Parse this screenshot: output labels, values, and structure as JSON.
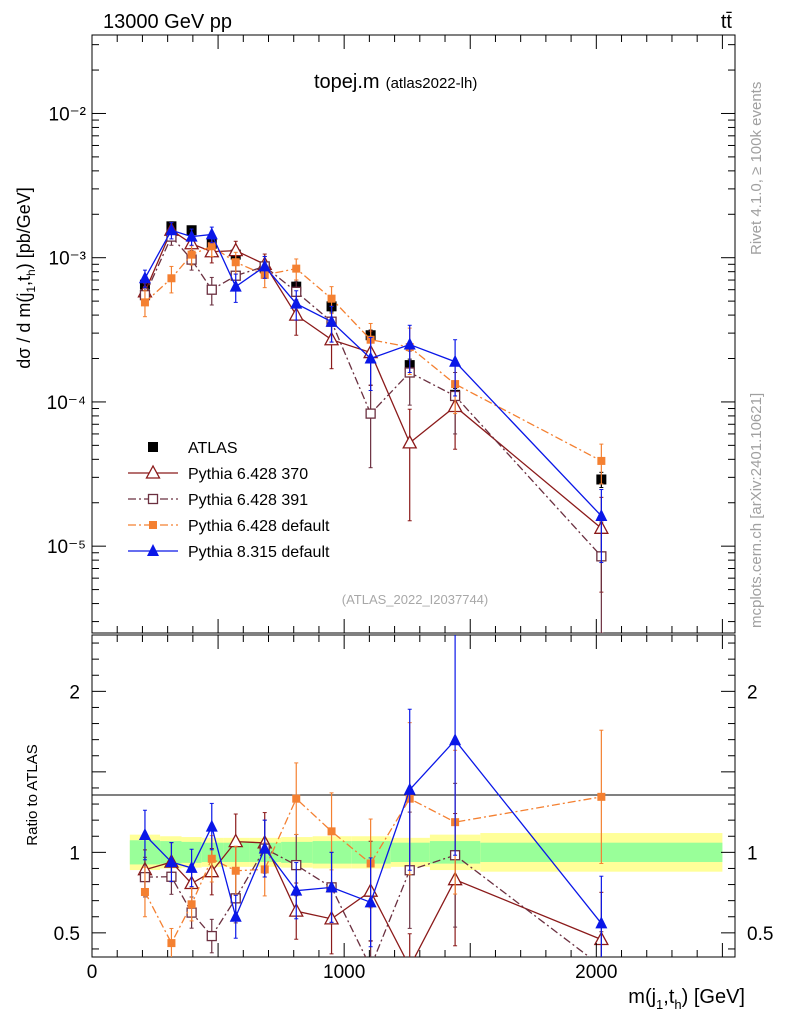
{
  "header": {
    "left": "13000 GeV pp",
    "right": "tt̄"
  },
  "chart_data": {
    "type": "scatter",
    "title": "topej.m",
    "subtitle": "(atlas2022-lh)",
    "watermark": "(ATLAS_2022_I2037744)",
    "side_label_top": "Rivet 4.1.0, ≥ 100k events",
    "side_label_bottom": "mcplots.cern.ch [arXiv:2401.10621]",
    "ylabel": "dσ / d m(j1,th) [pb/GeV]",
    "ratio_ylabel": "Ratio to ATLAS",
    "xlabel": "m(j1,th) [GeV]",
    "xlim": [
      0,
      2550
    ],
    "ylim": [
      2.5e-06,
      0.035
    ],
    "ratio_ylim": [
      0.35,
      2.35
    ],
    "x_ticks": [
      {
        "value": 0,
        "label": "0"
      },
      {
        "value": 1000,
        "label": "1000"
      },
      {
        "value": 2000,
        "label": "2000"
      }
    ],
    "y_ticks": [
      {
        "value": 0.01,
        "label": "10⁻²"
      },
      {
        "value": 0.001,
        "label": "10⁻³"
      },
      {
        "value": 0.0001,
        "label": "10⁻⁴"
      },
      {
        "value": 1e-05,
        "label": "10⁻⁵"
      }
    ],
    "ratio_ticks": [
      {
        "value": 0.5,
        "label": "0.5"
      },
      {
        "value": 1,
        "label": "1"
      },
      {
        "value": 2,
        "label": "2"
      }
    ],
    "x": [
      210,
      315,
      395,
      475,
      570,
      685,
      810,
      950,
      1105,
      1260,
      1440,
      2020
    ],
    "band_edges": [
      150,
      270,
      355,
      435,
      520,
      625,
      750,
      875,
      1030,
      1185,
      1340,
      1540,
      2500
    ],
    "band_inner": [
      0.075,
      0.07,
      0.065,
      0.06,
      0.06,
      0.06,
      0.065,
      0.07,
      0.07,
      0.06,
      0.07,
      0.06
    ],
    "band_outer": [
      0.11,
      0.1,
      0.095,
      0.09,
      0.09,
      0.09,
      0.095,
      0.1,
      0.1,
      0.09,
      0.11,
      0.12
    ],
    "series": [
      {
        "name": "ATLAS",
        "color": "#000000",
        "marker": "square-filled",
        "line": "none",
        "values": [
          0.00065,
          0.00165,
          0.00155,
          0.00125,
          0.00105,
          0.00085,
          0.00063,
          0.00046,
          0.00029,
          0.00018,
          0.000112,
          2.9e-05
        ],
        "errors": [
          7e-05,
          0.00012,
          0.00011,
          9e-05,
          8e-05,
          7e-05,
          5e-05,
          4e-05,
          2.5e-05,
          1.8e-05,
          1.2e-05,
          3.5e-06
        ]
      },
      {
        "name": "Pythia 6.428 370",
        "color": "#8b1a1a",
        "marker": "triangle-open",
        "line": "solid",
        "values": [
          0.00058,
          0.00155,
          0.00125,
          0.0011,
          0.00112,
          0.0009,
          0.0004,
          0.00027,
          0.00022,
          5.2e-05,
          9.3e-05,
          1.33e-05
        ],
        "errors": [
          8e-05,
          0.0002,
          0.00018,
          0.00018,
          0.00018,
          0.00016,
          0.00011,
          0.0001,
          9e-05,
          3.7e-05,
          4.6e-05,
          8.5e-06
        ]
      },
      {
        "name": "Pythia 6.428 391",
        "color": "#6b3040",
        "marker": "square-open",
        "line": "dashdot",
        "values": [
          0.00055,
          0.0014,
          0.00097,
          0.0006,
          0.00075,
          0.00087,
          0.00058,
          0.00036,
          8.3e-05,
          0.00016,
          0.00011,
          8.5e-06
        ],
        "errors": [
          8e-05,
          0.00018,
          0.00015,
          0.00013,
          0.00016,
          0.00015,
          0.00012,
          0.0001,
          4.8e-05,
          6.5e-05,
          5e-05,
          6.2e-06
        ]
      },
      {
        "name": "Pythia 6.428 default",
        "color": "#f48031",
        "marker": "square-filled-small",
        "line": "dashdot",
        "values": [
          0.00049,
          0.00072,
          0.00105,
          0.0012,
          0.00093,
          0.00076,
          0.00084,
          0.00052,
          0.00027,
          0.00024,
          0.000133,
          3.9e-05
        ],
        "errors": [
          0.0001,
          0.00015,
          0.00016,
          0.00018,
          0.00016,
          0.00014,
          0.00014,
          0.00011,
          8e-05,
          8.5e-05,
          5e-05,
          1.2e-05
        ]
      },
      {
        "name": "Pythia 8.315 default",
        "color": "#0a17e8",
        "marker": "triangle-filled",
        "line": "solid",
        "values": [
          0.00072,
          0.00155,
          0.0014,
          0.00145,
          0.00063,
          0.00087,
          0.00048,
          0.00036,
          0.0002,
          0.00025,
          0.00019,
          1.62e-05
        ],
        "errors": [
          0.0001,
          0.0002,
          0.00018,
          0.00018,
          0.00014,
          0.00015,
          0.00011,
          0.0001,
          8e-05,
          9e-05,
          8e-05,
          8.5e-06
        ]
      }
    ]
  }
}
